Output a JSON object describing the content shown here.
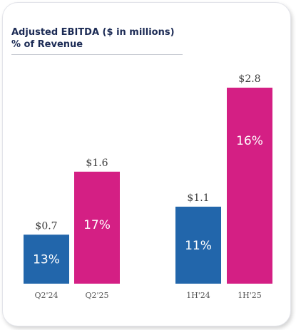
{
  "chart_data": {
    "type": "bar",
    "title": "Adjusted EBITDA ($ in millions)",
    "subtitle": "% of Revenue",
    "categories": [
      "Q2'24",
      "Q2'25",
      "1H'24",
      "1H'25"
    ],
    "values": [
      0.7,
      1.6,
      1.1,
      2.8
    ],
    "value_labels": [
      "$0.7",
      "$1.6",
      "$1.1",
      "$2.8"
    ],
    "percent_labels": [
      "13%",
      "17%",
      "11%",
      "16%"
    ],
    "bar_colors": [
      "#2266ab",
      "#d41f84",
      "#2266ab",
      "#d41f84"
    ],
    "ylim": [
      0,
      2.8
    ],
    "grid": false,
    "legend": "none"
  }
}
